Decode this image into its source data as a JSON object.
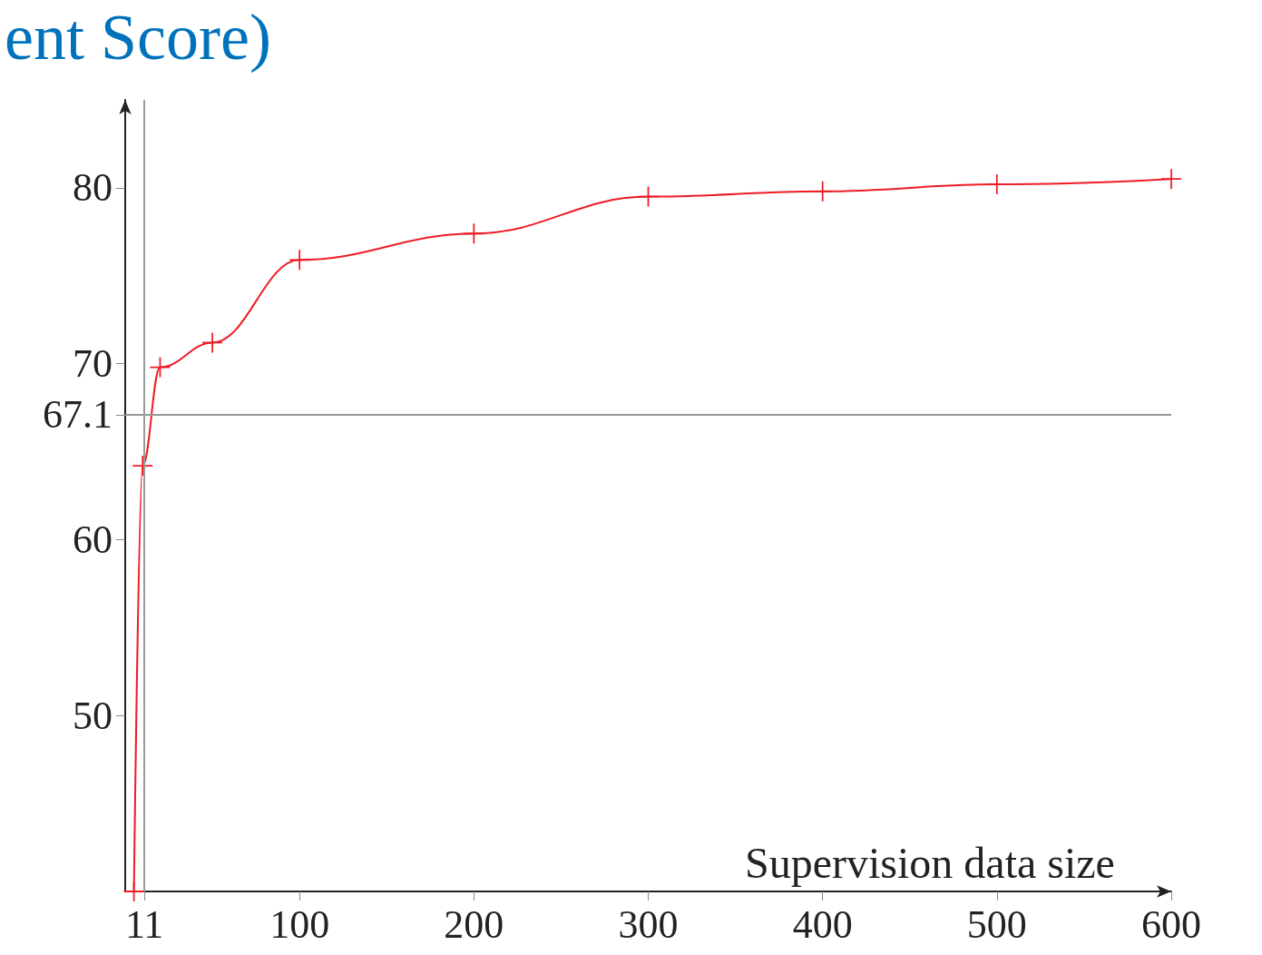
{
  "chart_data": {
    "type": "line",
    "title": "ent Score)",
    "xlabel": "Supervision data size",
    "x": [
      5,
      10,
      20,
      50,
      100,
      200,
      300,
      400,
      500,
      600
    ],
    "series": [
      {
        "color": "#ee1c25",
        "values": [
          40,
          64.2,
          69.8,
          71.2,
          75.9,
          77.4,
          79.5,
          79.8,
          80.2,
          80.5
        ]
      }
    ],
    "xlim": [
      0,
      600
    ],
    "xticks": [
      11,
      100,
      200,
      300,
      400,
      500,
      600
    ],
    "ylim": [
      40,
      85
    ],
    "yticks": [
      50,
      60,
      67.1,
      70,
      80
    ],
    "ref_lines": [
      {
        "axis": "x",
        "value": 11,
        "color": "#999999"
      },
      {
        "axis": "y",
        "value": 67.1,
        "color": "#999999"
      }
    ],
    "marker": "cross",
    "line_style": "solid",
    "grid": false
  }
}
